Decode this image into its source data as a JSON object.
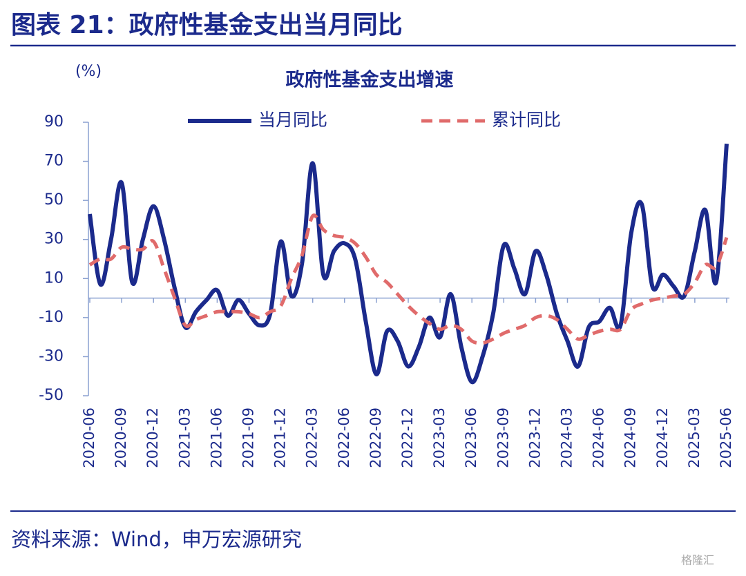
{
  "header": {
    "title": "图表 21：政府性基金支出当月同比"
  },
  "chart_data": {
    "type": "line",
    "title": "政府性基金支出增速",
    "y_label": "(%)",
    "categories": [
      "2020-06",
      null,
      null,
      "2020-09",
      null,
      null,
      "2020-12",
      null,
      null,
      "2021-03",
      null,
      null,
      "2021-06",
      null,
      null,
      "2021-09",
      null,
      null,
      "2021-12",
      null,
      null,
      "2022-03",
      null,
      null,
      "2022-06",
      null,
      null,
      "2022-09",
      null,
      null,
      "2022-12",
      null,
      null,
      "2023-03",
      null,
      null,
      "2023-06",
      null,
      null,
      "2023-09",
      null,
      null,
      "2023-12",
      null,
      null,
      "2024-03",
      null,
      null,
      "2024-06",
      null,
      null,
      "2024-09",
      null,
      null,
      "2024-12",
      null,
      null,
      "2025-03",
      null,
      null,
      "2025-06"
    ],
    "series": [
      {
        "name": "当月同比",
        "color": "#1b2a8c",
        "dash": false,
        "values": [
          43,
          7,
          30,
          59,
          8,
          30,
          47,
          30,
          5,
          -15,
          -7,
          -1,
          4,
          -9,
          -1,
          -8,
          -14,
          -8,
          29,
          1,
          18,
          69,
          12,
          24,
          28,
          20,
          -12,
          -39,
          -17,
          -22,
          -35,
          -25,
          -10,
          -20,
          2,
          -25,
          -43,
          -30,
          -8,
          27,
          15,
          2,
          24,
          12,
          -8,
          -22,
          -35,
          -15,
          -12,
          -5,
          -14,
          33,
          48,
          6,
          12,
          6,
          1,
          24,
          45,
          8,
          79
        ]
      },
      {
        "name": "累计同比",
        "color": "#e06b6b",
        "dash": true,
        "values": [
          17,
          20,
          20,
          26,
          25,
          25,
          29,
          15,
          0,
          -14,
          -11,
          -9,
          -7,
          -7,
          -7,
          -8,
          -10,
          -7,
          -4,
          10,
          22,
          42,
          35,
          32,
          31,
          28,
          21,
          12,
          8,
          2,
          -4,
          -9,
          -13,
          -16,
          -14,
          -16,
          -22,
          -23,
          -21,
          -18,
          -16,
          -14,
          -10,
          -9,
          -11,
          -16,
          -21,
          -19,
          -17,
          -16,
          -16,
          -6,
          -3,
          -1,
          0,
          1,
          2,
          8,
          17,
          16,
          31
        ]
      }
    ],
    "ylim": [
      -50,
      90
    ],
    "yticks": [
      -50,
      -30,
      -10,
      10,
      30,
      50,
      70,
      90
    ]
  },
  "footer": {
    "source": "资料来源：Wind，申万宏源研究",
    "watermark": "格隆汇"
  }
}
